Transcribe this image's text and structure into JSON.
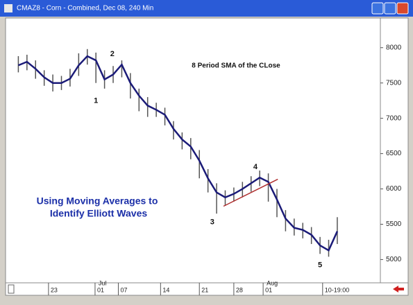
{
  "window_title": "CMAZ8 - Corn - Combined, Dec 08, 240 Min",
  "chart_data": {
    "type": "line",
    "annotation": "8 Period SMA of the CLose",
    "headline": [
      "Using Moving Averages to",
      "Identify Elliott Waves"
    ],
    "x": [
      0,
      1,
      2,
      3,
      4,
      5,
      6,
      7,
      8,
      9,
      10,
      11,
      12,
      13,
      14,
      15,
      16,
      17,
      18,
      19,
      20,
      21,
      22,
      23,
      24,
      25,
      26,
      27,
      28,
      29,
      30,
      31,
      32,
      33,
      34,
      35,
      36,
      37
    ],
    "series": [
      {
        "color": "#1b1b78",
        "values": [
          7750,
          7800,
          7700,
          7580,
          7500,
          7500,
          7560,
          7750,
          7880,
          7820,
          7550,
          7620,
          7760,
          7500,
          7320,
          7180,
          7120,
          7050,
          6850,
          6700,
          6600,
          6400,
          6150,
          5950,
          5880,
          5930,
          6000,
          6080,
          6160,
          6100,
          5850,
          5580,
          5450,
          5420,
          5350,
          5200,
          5130,
          5400
        ]
      }
    ],
    "bars": {
      "color": "#555555",
      "high": [
        7880,
        7900,
        7820,
        7680,
        7620,
        7600,
        7700,
        7920,
        7980,
        7930,
        7680,
        7740,
        7820,
        7640,
        7420,
        7300,
        7220,
        7150,
        6960,
        6800,
        6720,
        6550,
        6280,
        6080,
        5980,
        6020,
        6100,
        6180,
        6260,
        6220,
        6000,
        5700,
        5580,
        5520,
        5460,
        5320,
        5280,
        5600
      ],
      "low": [
        7650,
        7680,
        7560,
        7460,
        7380,
        7400,
        7450,
        7600,
        7760,
        7500,
        7420,
        7500,
        7580,
        7280,
        7100,
        7020,
        7020,
        6900,
        6700,
        6560,
        6420,
        6150,
        5950,
        5650,
        5760,
        5820,
        5880,
        5960,
        6040,
        5820,
        5600,
        5400,
        5340,
        5300,
        5220,
        5080,
        5040,
        5220
      ]
    },
    "trendline": {
      "color": "#b03030",
      "x": [
        23.8,
        30.1
      ],
      "y": [
        5755,
        6137
      ]
    },
    "waves": [
      {
        "text": "1",
        "x": 9.0,
        "y": 7245
      },
      {
        "text": "2",
        "x": 10.9,
        "y": 7910
      },
      {
        "text": "3",
        "x": 22.5,
        "y": 5530
      },
      {
        "text": "4",
        "x": 27.5,
        "y": 6310
      },
      {
        "text": "5",
        "x": 35,
        "y": 4920
      }
    ],
    "xlim": [
      -1,
      42
    ],
    "xticks": [
      {
        "value": 3.5,
        "label": "23"
      },
      {
        "value": 8.9,
        "label": "01"
      },
      {
        "value": 11.6,
        "label": "07"
      },
      {
        "value": 16.5,
        "label": "14"
      },
      {
        "value": 21,
        "label": "21"
      },
      {
        "value": 25,
        "label": "28"
      },
      {
        "value": 28.4,
        "label": "01"
      },
      {
        "value": 35.3,
        "label": "10-19:00"
      }
    ],
    "month_labels": [
      {
        "value": 9.3,
        "label": "Jul"
      },
      {
        "value": 28.8,
        "label": "Aug"
      }
    ],
    "ylim": [
      4700,
      8400
    ],
    "yticks": [
      5000,
      5500,
      6000,
      6500,
      7000,
      7500,
      8000
    ]
  }
}
